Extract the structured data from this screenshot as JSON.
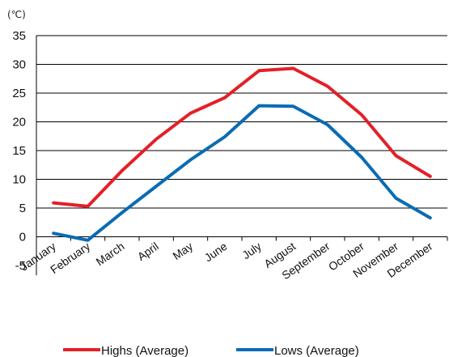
{
  "chart_data": {
    "type": "line",
    "unit_label": "(℃)",
    "categories": [
      "January",
      "February",
      "March",
      "April",
      "May",
      "June",
      "July",
      "August",
      "September",
      "October",
      "November",
      "December"
    ],
    "ylim": [
      -5,
      35
    ],
    "yticks": [
      -5,
      0,
      5,
      10,
      15,
      20,
      25,
      30,
      35
    ],
    "grid": true,
    "legend_position": "bottom",
    "series": [
      {
        "name": "Highs (Average)",
        "color": "#e32027",
        "values": [
          5.9,
          5.3,
          11.5,
          17.0,
          21.5,
          24.2,
          28.9,
          29.3,
          26.2,
          21.2,
          14.1,
          10.5
        ]
      },
      {
        "name": "Lows (Average)",
        "color": "#0a6cb3",
        "values": [
          0.6,
          -0.6,
          4.2,
          8.8,
          13.4,
          17.4,
          22.8,
          22.7,
          19.5,
          13.8,
          6.7,
          3.3
        ]
      }
    ]
  }
}
